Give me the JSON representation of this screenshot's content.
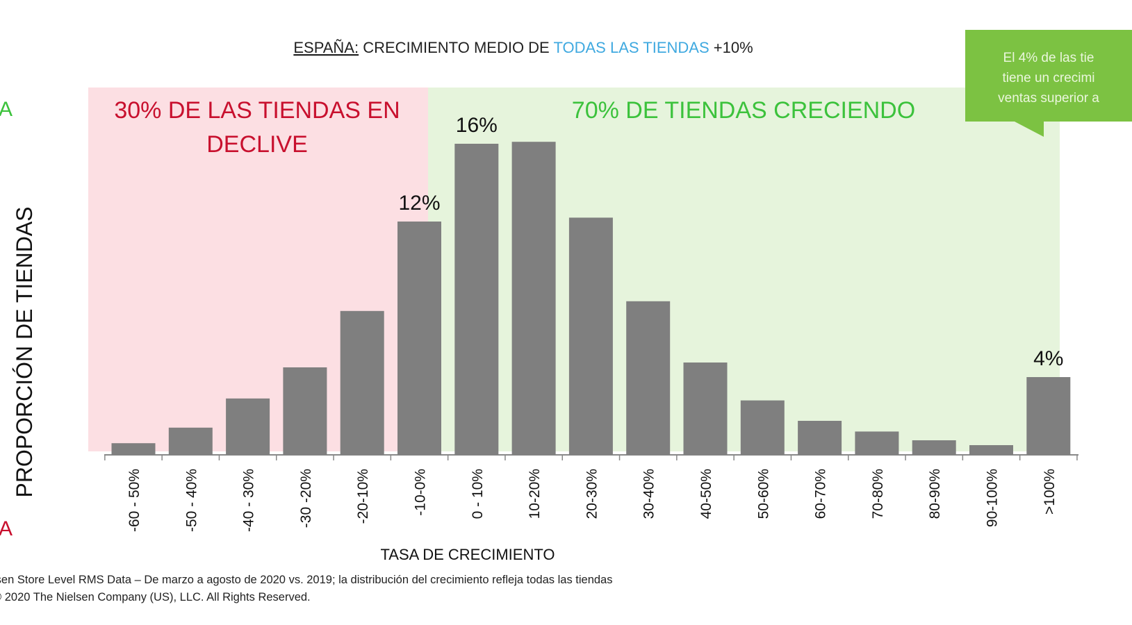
{
  "title": {
    "country": "ESPAÑA:",
    "prefix": "CRECIMIENTO MEDIO DE",
    "highlight": "TODAS LAS TIENDAS",
    "suffix": "+10%",
    "highlight_color": "#3fa9e0"
  },
  "left_edge": {
    "top": "A",
    "bottom": "A"
  },
  "regions": {
    "decline_label_1": "30% DE LAS TIENDAS EN",
    "decline_label_2": "DECLIVE",
    "growth_label": "70% DE TIENDAS CRECIENDO",
    "decline_color": "#fcdfe3",
    "growth_color": "#e6f4dc"
  },
  "callout": {
    "lines": [
      "El 4% de las tie",
      "tiene un crecimi",
      "ventas superior a"
    ]
  },
  "footer": {
    "source": "lsen Store Level RMS Data – De marzo a agosto de 2020 vs. 2019; la distribución del crecimiento refleja todas las tiendas",
    "copyright": "© 2020 The Nielsen Company (US), LLC. All Rights Reserved."
  },
  "chart_data": {
    "type": "bar",
    "title": "ESPAÑA: CRECIMIENTO MEDIO DE TODAS LAS TIENDAS +10%",
    "xlabel": "TASA DE CRECIMIENTO",
    "ylabel": "PROPORCIÓN DE TIENDAS",
    "categories": [
      "-60 - 50%",
      "-50 - 40%",
      "-40 - 30%",
      "-30 -20%",
      "-20-10%",
      "-10-0%",
      "0 - 10%",
      "10-20%",
      "20-30%",
      "30-40%",
      "40-50%",
      "50-60%",
      "60-70%",
      "70-80%",
      "80-90%",
      "90-100%",
      ">100%"
    ],
    "values": [
      0.6,
      1.4,
      2.9,
      4.5,
      7.4,
      12,
      16,
      16.1,
      12.2,
      7.9,
      4.75,
      2.8,
      1.75,
      1.2,
      0.75,
      0.5,
      4
    ],
    "data_labels": {
      "5": "12%",
      "6": "16%",
      "16": "4%"
    },
    "ylim": [
      0,
      17
    ],
    "bar_color": "#7f7f7f",
    "grid": false
  }
}
